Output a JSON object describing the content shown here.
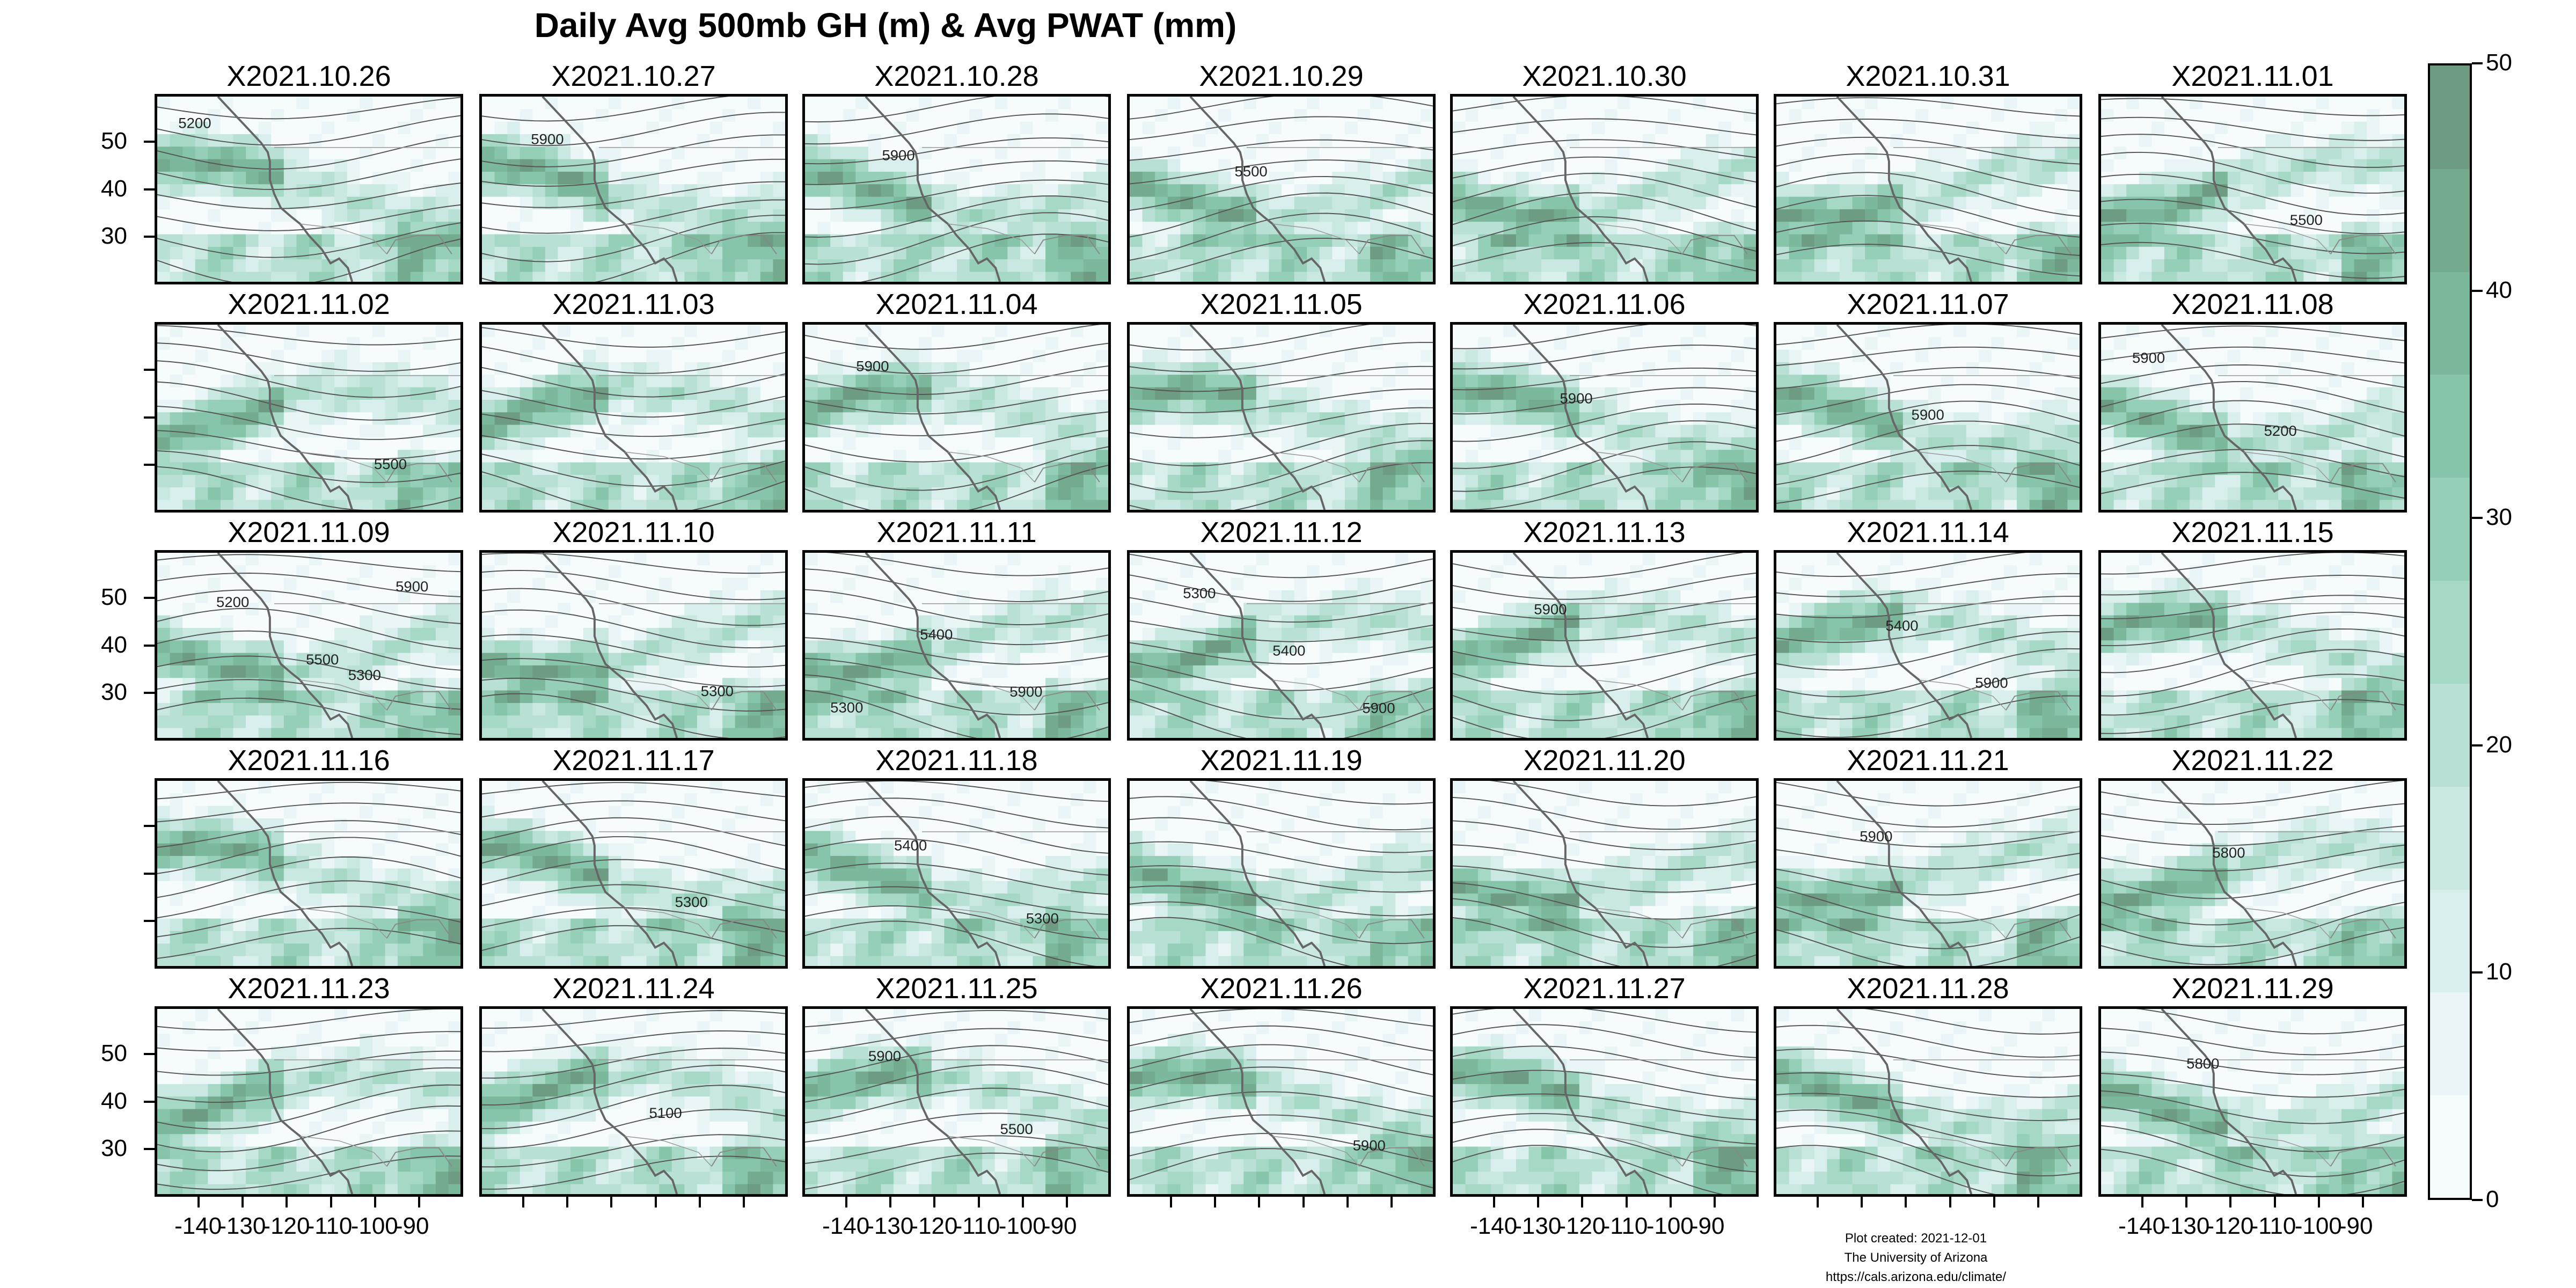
{
  "title": "Daily Avg 500mb GH (m) & Avg PWAT (mm)",
  "panels": [
    {
      "date": "X2021.10.26",
      "contours": [
        "5200"
      ]
    },
    {
      "date": "X2021.10.27",
      "contours": [
        "5900"
      ]
    },
    {
      "date": "X2021.10.28",
      "contours": [
        "5900"
      ]
    },
    {
      "date": "X2021.10.29",
      "contours": [
        "5500"
      ]
    },
    {
      "date": "X2021.10.30",
      "contours": []
    },
    {
      "date": "X2021.10.31",
      "contours": []
    },
    {
      "date": "X2021.11.01",
      "contours": [
        "5500"
      ]
    },
    {
      "date": "X2021.11.02",
      "contours": [
        "5500"
      ]
    },
    {
      "date": "X2021.11.03",
      "contours": []
    },
    {
      "date": "X2021.11.04",
      "contours": [
        "5900"
      ]
    },
    {
      "date": "X2021.11.05",
      "contours": []
    },
    {
      "date": "X2021.11.06",
      "contours": [
        "5900"
      ]
    },
    {
      "date": "X2021.11.07",
      "contours": [
        "5900"
      ]
    },
    {
      "date": "X2021.11.08",
      "contours": [
        "5200",
        "5900"
      ]
    },
    {
      "date": "X2021.11.09",
      "contours": [
        "5300",
        "5200",
        "5500",
        "5900"
      ]
    },
    {
      "date": "X2021.11.10",
      "contours": [
        "5300"
      ]
    },
    {
      "date": "X2021.11.11",
      "contours": [
        "5300",
        "5400",
        "5900"
      ]
    },
    {
      "date": "X2021.11.12",
      "contours": [
        "5300",
        "5400",
        "5900"
      ]
    },
    {
      "date": "X2021.11.13",
      "contours": [
        "5900"
      ]
    },
    {
      "date": "X2021.11.14",
      "contours": [
        "5400",
        "5900"
      ]
    },
    {
      "date": "X2021.11.15",
      "contours": []
    },
    {
      "date": "X2021.11.16",
      "contours": []
    },
    {
      "date": "X2021.11.17",
      "contours": [
        "5300"
      ]
    },
    {
      "date": "X2021.11.18",
      "contours": [
        "5300",
        "5400"
      ]
    },
    {
      "date": "X2021.11.19",
      "contours": []
    },
    {
      "date": "X2021.11.20",
      "contours": []
    },
    {
      "date": "X2021.11.21",
      "contours": [
        "5900"
      ]
    },
    {
      "date": "X2021.11.22",
      "contours": [
        "5800"
      ]
    },
    {
      "date": "X2021.11.23",
      "contours": []
    },
    {
      "date": "X2021.11.24",
      "contours": [
        "5100"
      ]
    },
    {
      "date": "X2021.11.25",
      "contours": [
        "5500",
        "5900"
      ]
    },
    {
      "date": "X2021.11.26",
      "contours": [
        "5900"
      ]
    },
    {
      "date": "X2021.11.27",
      "contours": []
    },
    {
      "date": "X2021.11.28",
      "contours": []
    },
    {
      "date": "X2021.11.29",
      "contours": [
        "5800"
      ]
    }
  ],
  "lat_ticks": [
    "50",
    "40",
    "30"
  ],
  "lon_ticks": [
    "-140",
    "-130",
    "-120",
    "-110",
    "-100",
    "-90"
  ],
  "colorbar": {
    "ticks": [
      "50",
      "40",
      "30",
      "20",
      "10",
      "0"
    ],
    "colors": [
      "#f6fbfc",
      "#e9f5f6",
      "#d9efee",
      "#c9e8e2",
      "#b8e0d4",
      "#a6d8c6",
      "#95cfb8",
      "#86c5aa",
      "#7cb89c",
      "#74aa8e",
      "#6d9c82"
    ]
  },
  "footer": {
    "line1": "Plot created: 2021-12-01",
    "line2": "The University of Arizona",
    "line3": "https://cals.arizona.edu/climate/"
  }
}
